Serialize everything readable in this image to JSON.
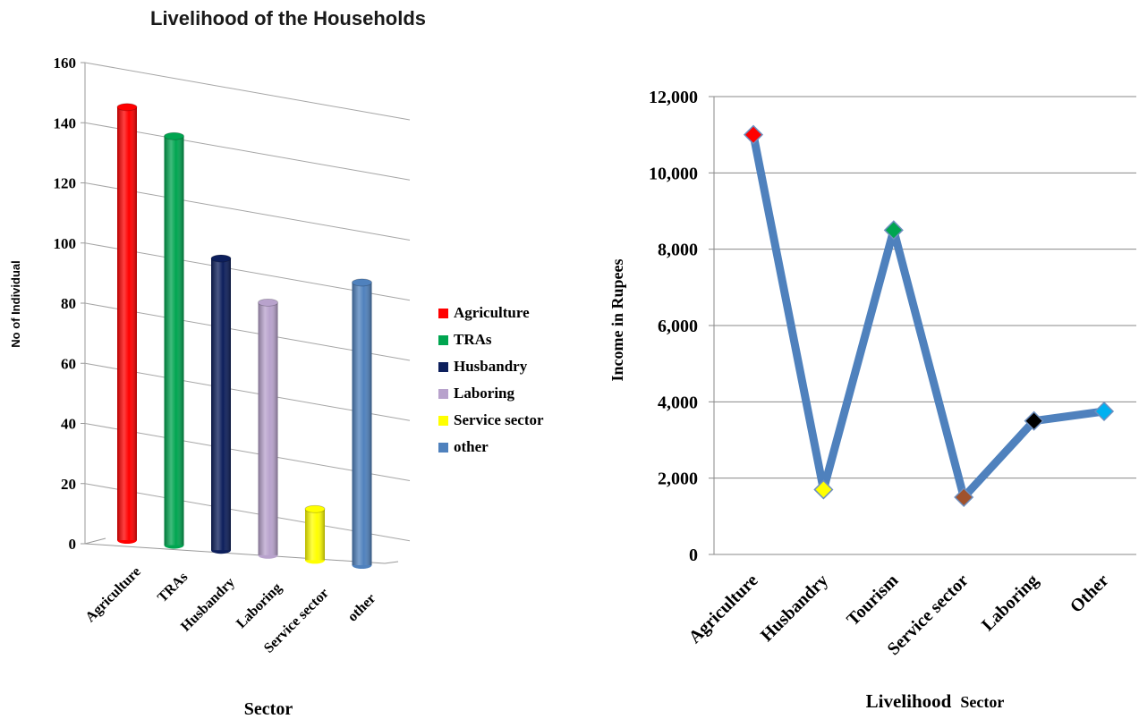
{
  "chart_data": [
    {
      "type": "bar",
      "title": "Livelihood of the Households",
      "xlabel": "Sector",
      "ylabel": "No of Individual",
      "ylim": [
        0,
        160
      ],
      "yticks": [
        "0",
        "20",
        "40",
        "60",
        "80",
        "100",
        "120",
        "140",
        "160"
      ],
      "grid": true,
      "legend_position": "right",
      "categories": [
        "Agriculture",
        "TRAs",
        "Husbandry",
        "Laboring",
        "Service sector",
        "other"
      ],
      "values": [
        144,
        136,
        97,
        84,
        17,
        94
      ],
      "colors": [
        "#ff0000",
        "#00a550",
        "#0d1f5c",
        "#b8a2cc",
        "#ffff00",
        "#4f81bd"
      ],
      "legend": [
        "Agriculture",
        "TRAs",
        "Husbandry",
        "Laboring",
        "Service sector",
        "other"
      ]
    },
    {
      "type": "line",
      "xlabel_bold": "Livelihood",
      "xlabel_rest": "Sector",
      "ylabel": "Income in Rupees",
      "ylim": [
        0,
        12000
      ],
      "yticks": [
        "0",
        "2,000",
        "4,000",
        "6,000",
        "8,000",
        "10,000",
        "12,000"
      ],
      "grid": true,
      "categories": [
        "Agriculture",
        "Husbandry",
        "Tourism",
        "Service sector",
        "Laboring",
        "Other"
      ],
      "values": [
        11000,
        1700,
        8500,
        1500,
        3500,
        3750
      ],
      "line_color": "#4f81bd",
      "marker_colors": [
        "#ff0000",
        "#ffff00",
        "#00a550",
        "#a0522d",
        "#000000",
        "#00b0f0"
      ]
    }
  ]
}
